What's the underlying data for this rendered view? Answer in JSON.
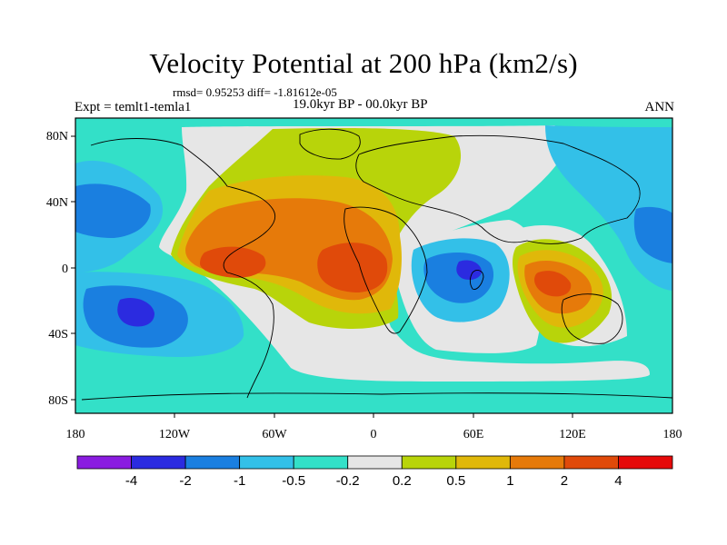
{
  "title": "Velocity Potential at 200 hPa (km2/s)",
  "stats": "rmsd= 0.95253 diff= -1.81612e-05",
  "period": "19.0kyr BP - 00.0kyr BP",
  "experiment": "Expt = temlt1-temla1",
  "season": "ANN",
  "map": {
    "projection": "cylindrical equidistant",
    "lon_range": [
      -180,
      180
    ],
    "lat_range": [
      -90,
      90
    ],
    "x_ticks": [
      "180",
      "120W",
      "60W",
      "0",
      "60E",
      "120E",
      "180"
    ],
    "y_ticks": [
      "80N",
      "40N",
      "0",
      "40S",
      "80S"
    ]
  },
  "colorbar": {
    "labels": [
      "-4",
      "-2",
      "-1",
      "-0.5",
      "-0.2",
      "0.2",
      "0.5",
      "1",
      "2",
      "4"
    ],
    "colors": [
      "#8a1ce0",
      "#2b2be0",
      "#1a7fe0",
      "#33c0e8",
      "#33e0c8",
      "#e6e6e6",
      "#b8d40a",
      "#e0b80a",
      "#e67a0a",
      "#e04a0a",
      "#e60a0a"
    ]
  },
  "palette": {
    "neutral": "#e6e6e6",
    "cyan": "#33e0c8",
    "lightblue": "#33c0e8",
    "blue": "#1a7fe0",
    "darkblue": "#2b2be0",
    "yellowgreen": "#b8d40a",
    "gold": "#e0b80a",
    "orange": "#e67a0a",
    "redorange": "#e04a0a"
  }
}
